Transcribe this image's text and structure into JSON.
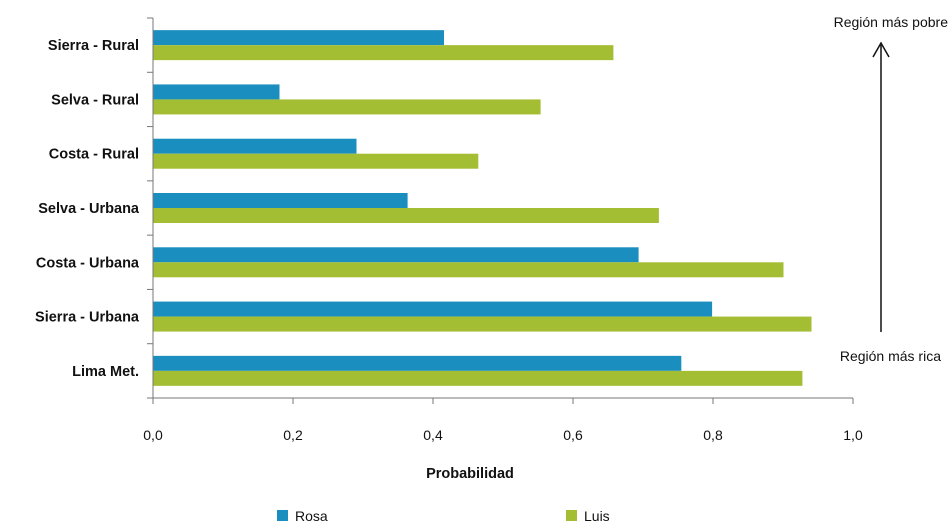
{
  "chart_data": {
    "type": "bar",
    "orientation": "horizontal",
    "categories": [
      "Sierra - Rural",
      "Selva - Rural",
      "Costa - Rural",
      "Selva - Urbana",
      "Costa - Urbana",
      "Sierra - Urbana",
      "Lima Met."
    ],
    "series": [
      {
        "name": "Rosa",
        "color": "#1A8FBF",
        "values": [
          0.415,
          0.18,
          0.29,
          0.363,
          0.693,
          0.798,
          0.754
        ]
      },
      {
        "name": "Luis",
        "color": "#A4BE34",
        "values": [
          0.657,
          0.553,
          0.464,
          0.722,
          0.9,
          0.94,
          0.927
        ]
      }
    ],
    "xlabel": "Probabilidad",
    "ylabel": "",
    "xlim": [
      0,
      1
    ],
    "xticks": [
      "0,0",
      "0,2",
      "0,4",
      "0,6",
      "0,8",
      "1,0"
    ],
    "grid": false,
    "legend_position": "bottom",
    "annotations": {
      "top": "Región más pobre",
      "bottom": "Región más rica"
    }
  }
}
